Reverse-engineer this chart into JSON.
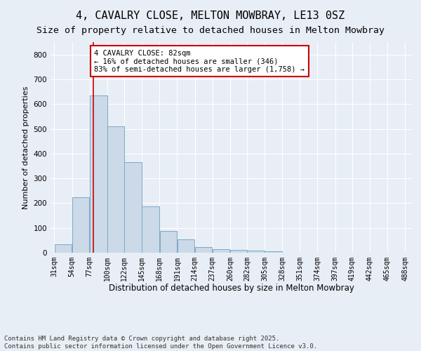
{
  "title": "4, CAVALRY CLOSE, MELTON MOWBRAY, LE13 0SZ",
  "subtitle": "Size of property relative to detached houses in Melton Mowbray",
  "xlabel": "Distribution of detached houses by size in Melton Mowbray",
  "ylabel": "Number of detached properties",
  "bar_color": "#ccd9e8",
  "bar_edge_color": "#7aaac8",
  "vline_color": "#cc0000",
  "annotation_text": "4 CAVALRY CLOSE: 82sqm\n← 16% of detached houses are smaller (346)\n83% of semi-detached houses are larger (1,758) →",
  "annotation_box_color": "#ffffff",
  "annotation_box_edgecolor": "#cc0000",
  "bins": [
    31,
    54,
    77,
    100,
    122,
    145,
    168,
    191,
    214,
    237,
    260,
    282,
    305,
    328,
    351,
    374,
    397,
    419,
    442,
    465,
    488
  ],
  "values": [
    33,
    224,
    635,
    509,
    365,
    186,
    88,
    55,
    22,
    15,
    12,
    8,
    7,
    0,
    0,
    0,
    0,
    0,
    0,
    0
  ],
  "ylim": [
    0,
    850
  ],
  "yticks": [
    0,
    100,
    200,
    300,
    400,
    500,
    600,
    700,
    800
  ],
  "background_color": "#e8eef5",
  "grid_color": "#ffffff",
  "vline_x": 82,
  "footer_text": "Contains HM Land Registry data © Crown copyright and database right 2025.\nContains public sector information licensed under the Open Government Licence v3.0.",
  "title_fontsize": 11,
  "subtitle_fontsize": 9.5,
  "xlabel_fontsize": 8.5,
  "ylabel_fontsize": 8,
  "annotation_fontsize": 7.5,
  "tick_fontsize": 7,
  "footer_fontsize": 6.5
}
